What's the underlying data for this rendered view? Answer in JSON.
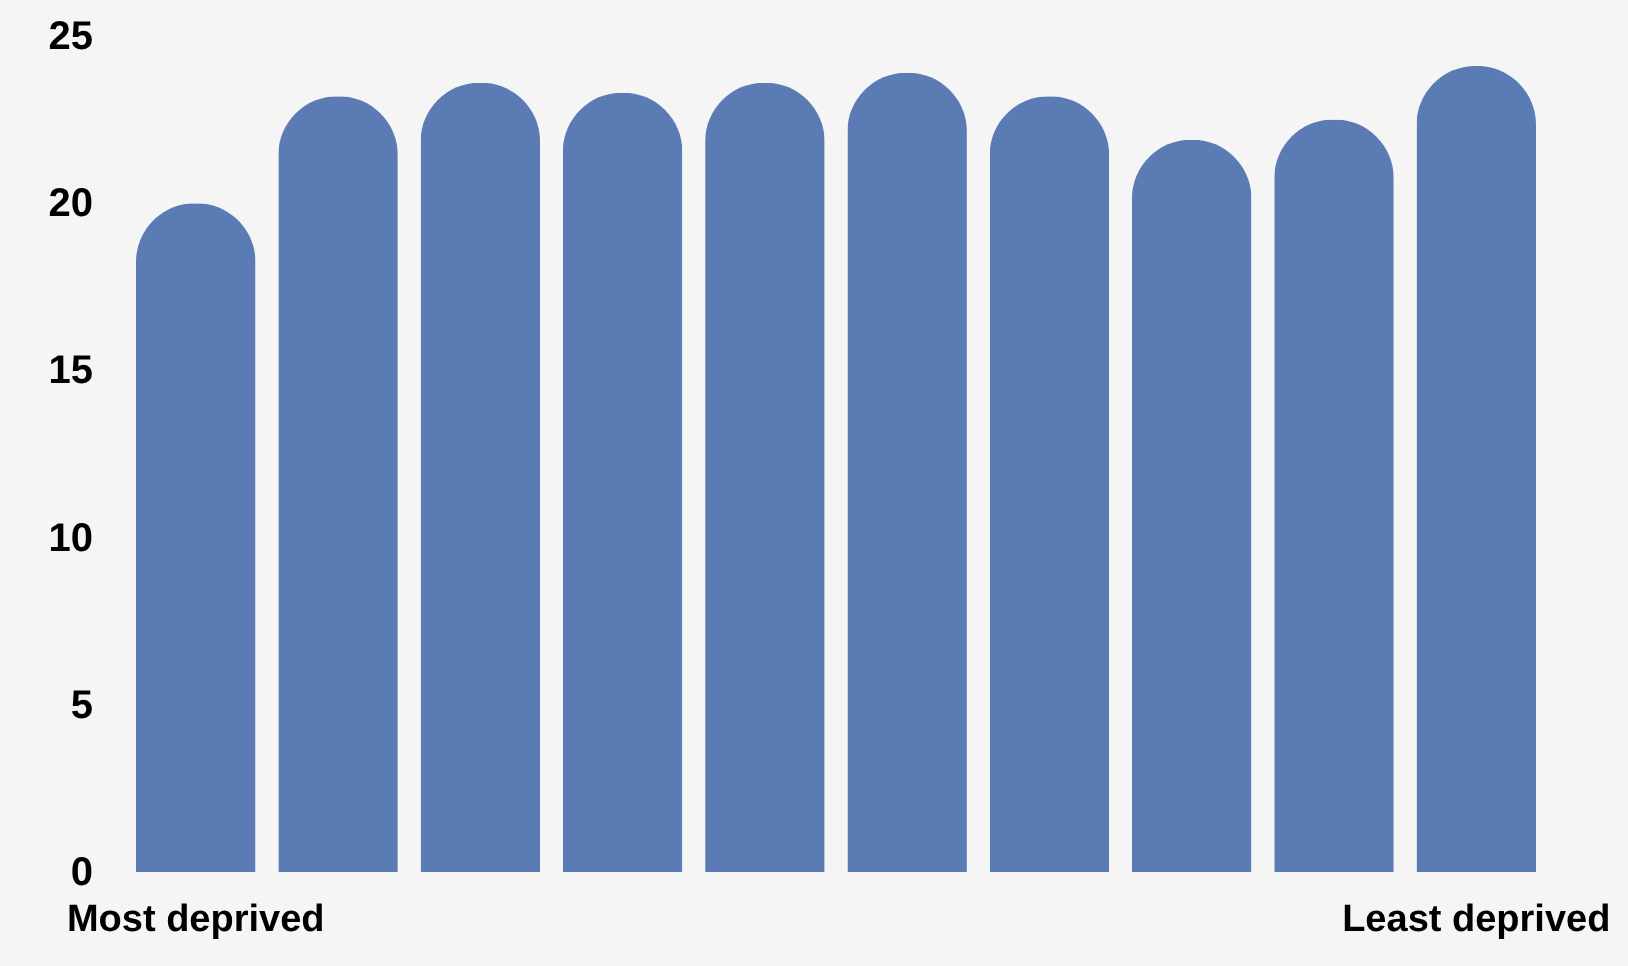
{
  "chart_data": {
    "type": "bar",
    "categories": [
      "Most deprived",
      null,
      null,
      null,
      null,
      null,
      null,
      null,
      null,
      "Least deprived"
    ],
    "values": [
      20.0,
      23.2,
      23.6,
      23.3,
      23.6,
      23.9,
      23.2,
      21.9,
      22.5,
      24.1
    ],
    "color": "#5b7bb5",
    "ylim": [
      0,
      25
    ],
    "yticks": [
      0,
      5,
      10,
      15,
      20,
      25
    ],
    "grid": false
  }
}
